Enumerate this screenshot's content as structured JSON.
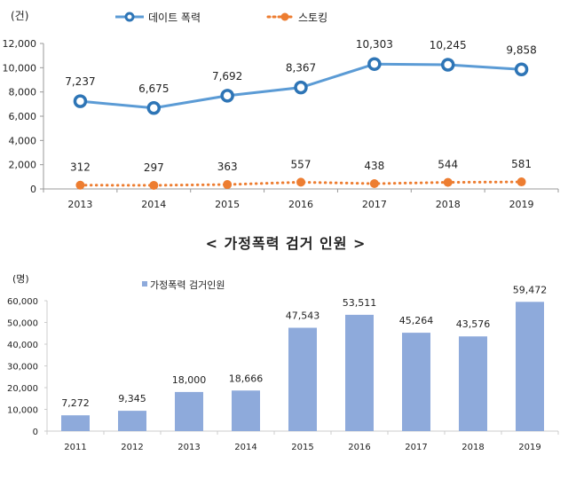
{
  "chart_data": [
    {
      "type": "line",
      "unit_label": "(건)",
      "categories": [
        "2013",
        "2014",
        "2015",
        "2016",
        "2017",
        "2018",
        "2019"
      ],
      "ylim": [
        0,
        12000
      ],
      "yticks": [
        "0",
        "2,000",
        "4,000",
        "6,000",
        "8,000",
        "10,000",
        "12,000"
      ],
      "grid": false,
      "legend_placement": "top",
      "series": [
        {
          "name": "데이트 폭력",
          "values": [
            7237,
            6675,
            7692,
            8367,
            10303,
            10245,
            9858
          ],
          "labels": [
            "7,237",
            "6,675",
            "7,692",
            "8,367",
            "10,303",
            "10,245",
            "9,858"
          ],
          "color": "#5b9bd5",
          "marker_color": "#2e75b6",
          "style": "solid"
        },
        {
          "name": "스토킹",
          "values": [
            312,
            297,
            363,
            557,
            438,
            544,
            581
          ],
          "labels": [
            "312",
            "297",
            "363",
            "557",
            "438",
            "544",
            "581"
          ],
          "color": "#ed7d31",
          "style": "dotted"
        }
      ]
    },
    {
      "type": "bar",
      "title": "< 가정폭력 검거 인원 >",
      "unit_label": "(명)",
      "categories": [
        "2011",
        "2012",
        "2013",
        "2014",
        "2015",
        "2016",
        "2017",
        "2018",
        "2019"
      ],
      "ylim": [
        0,
        60000
      ],
      "yticks": [
        "0",
        "10,000",
        "20,000",
        "30,000",
        "40,000",
        "50,000",
        "60,000"
      ],
      "grid": false,
      "legend_placement": "top-left",
      "series": [
        {
          "name": "가정폭력 검거인원",
          "values": [
            7272,
            9345,
            18000,
            18666,
            47543,
            53511,
            45264,
            43576,
            59472
          ],
          "labels": [
            "7,272",
            "9,345",
            "18,000",
            "18,666",
            "47,543",
            "53,511",
            "45,264",
            "43,576",
            "59,472"
          ],
          "color": "#8eaadb"
        }
      ]
    }
  ]
}
